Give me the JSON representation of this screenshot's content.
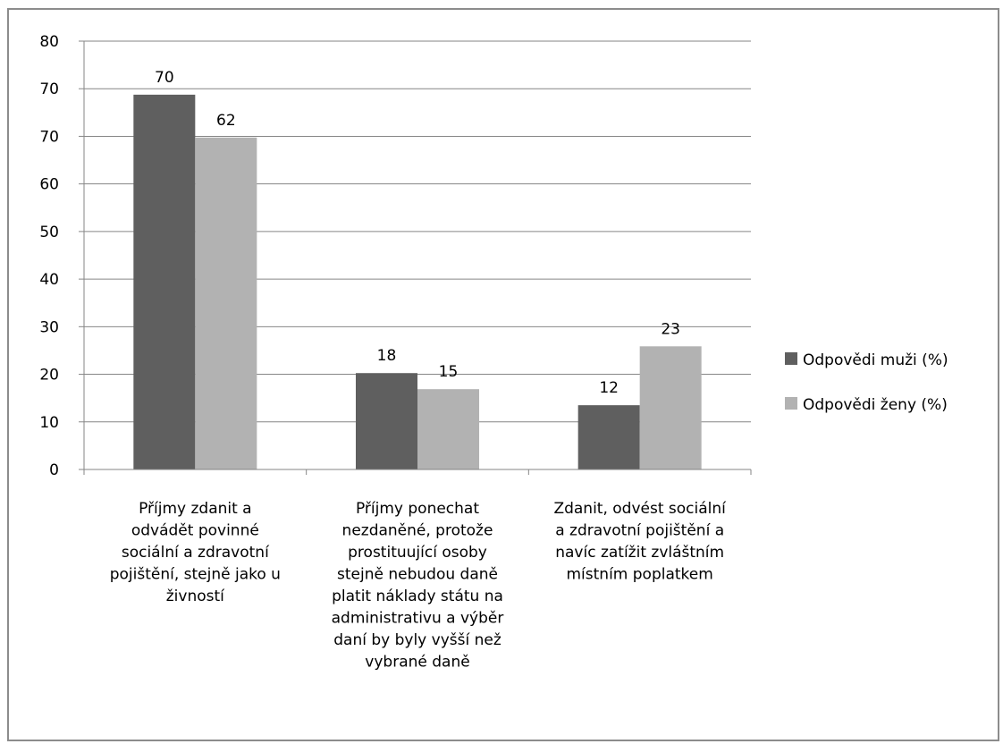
{
  "colors": {
    "series1": "#5f5f5f",
    "series2": "#b2b2b2",
    "grid": "#868686",
    "axis": "#868686"
  },
  "chart_data": {
    "type": "bar",
    "ylim": [
      0,
      80
    ],
    "yticks": [
      "0",
      "10",
      "20",
      "30",
      "40",
      "50",
      "60",
      "70",
      "70",
      "80"
    ],
    "grid": true,
    "legend_position": "right",
    "categories": [
      [
        "Příjmy zdanit a",
        "odvádět povinné",
        "sociální a zdravotní",
        "pojištění, stejně jako u",
        "živností"
      ],
      [
        "Příjmy  ponechat",
        "nezdaněné, protože",
        "prostituující osoby",
        "stejně nebudou daně",
        "platit náklady státu na",
        "administrativu a výběr",
        "daní  by  byly vyšší než",
        "vybrané daně"
      ],
      [
        "Zdanit, odvést sociální",
        "a zdravotní pojištění a",
        "navíc zatížit zvláštním",
        "místním poplatkem"
      ]
    ],
    "series": [
      {
        "name": "Odpovědi muži (%)",
        "values": [
          70,
          18,
          12
        ],
        "labels": [
          "70",
          "18",
          "12"
        ]
      },
      {
        "name": "Odpovědi ženy (%)",
        "values": [
          62,
          15,
          23
        ],
        "labels": [
          "62",
          "15",
          "23"
        ]
      }
    ]
  }
}
